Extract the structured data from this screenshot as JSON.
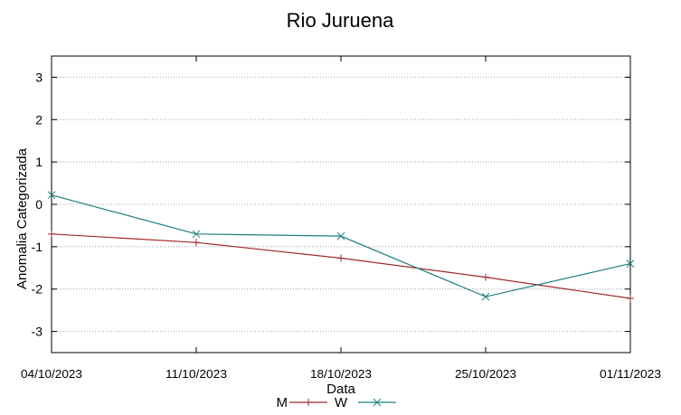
{
  "chart_data": {
    "type": "line",
    "title": "Rio Juruena",
    "xlabel": "Data",
    "ylabel": "Anomalia Categorizada",
    "categories": [
      "04/10/2023",
      "11/10/2023",
      "18/10/2023",
      "25/10/2023",
      "01/11/2023"
    ],
    "ylim": [
      -3.5,
      3.5
    ],
    "yticks": [
      "3",
      "2",
      "1",
      "0",
      "-1",
      "-2",
      "-3"
    ],
    "grid": true,
    "legend_position": "bottom-center",
    "series": [
      {
        "name": "M",
        "color": "#a0292c",
        "marker": "plus",
        "values": [
          -0.7,
          -0.9,
          -1.27,
          -1.72,
          -2.22
        ]
      },
      {
        "name": "W",
        "color": "#1f7f7f",
        "marker": "cross",
        "values": [
          0.22,
          -0.7,
          -0.75,
          -2.18,
          -1.4
        ]
      }
    ]
  }
}
